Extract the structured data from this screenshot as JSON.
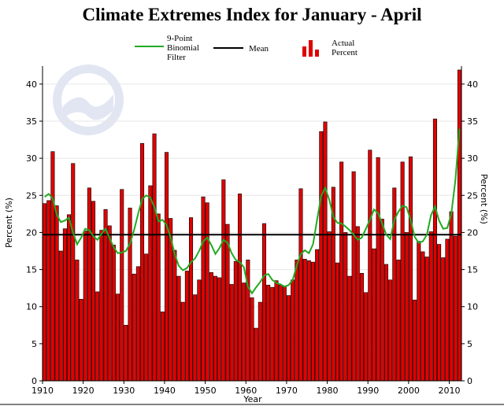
{
  "chart_data": {
    "type": "bar",
    "title": "Climate Extremes Index for January - April",
    "xlabel": "Year",
    "ylabel_left": "Percent (%)",
    "ylabel_right": "Percent (%)",
    "xlim": [
      1910,
      2013
    ],
    "ylim": [
      0,
      42
    ],
    "xticks": [
      1910,
      1920,
      1930,
      1940,
      1950,
      1960,
      1970,
      1980,
      1990,
      2000,
      2010
    ],
    "yticks": [
      0,
      5,
      10,
      15,
      20,
      25,
      30,
      35,
      40
    ],
    "grid": true,
    "legend": {
      "placement": "top",
      "filter_label_lines": [
        "9-Point",
        "Binomial",
        "Filter"
      ],
      "mean_label": "Mean",
      "actual_label_lines": [
        "Actual",
        "Percent"
      ]
    },
    "colors": {
      "bars": "#e00000",
      "bar_edge": "#000000",
      "filter": "#22aa22",
      "mean": "#000000"
    },
    "mean_value": 19.7,
    "x": [
      1910,
      1911,
      1912,
      1913,
      1914,
      1915,
      1916,
      1917,
      1918,
      1919,
      1920,
      1921,
      1922,
      1923,
      1924,
      1925,
      1926,
      1927,
      1928,
      1929,
      1930,
      1931,
      1932,
      1933,
      1934,
      1935,
      1936,
      1937,
      1938,
      1939,
      1940,
      1941,
      1942,
      1943,
      1944,
      1945,
      1946,
      1947,
      1948,
      1949,
      1950,
      1951,
      1952,
      1953,
      1954,
      1955,
      1956,
      1957,
      1958,
      1959,
      1960,
      1961,
      1962,
      1963,
      1964,
      1965,
      1966,
      1967,
      1968,
      1969,
      1970,
      1971,
      1972,
      1973,
      1974,
      1975,
      1976,
      1977,
      1978,
      1979,
      1980,
      1981,
      1982,
      1983,
      1984,
      1985,
      1986,
      1987,
      1988,
      1989,
      1990,
      1991,
      1992,
      1993,
      1994,
      1995,
      1996,
      1997,
      1998,
      1999,
      2000,
      2001,
      2002,
      2003,
      2004,
      2005,
      2006,
      2007,
      2008,
      2009,
      2010,
      2011,
      2012
    ],
    "series": [
      {
        "values": [
          23.9,
          24.3,
          30.9,
          23.6,
          17.5,
          20.5,
          22.4,
          29.3,
          16.3,
          11.0,
          20.2,
          26.0,
          24.2,
          12.0,
          20.3,
          23.1,
          20.9,
          18.3,
          11.7,
          25.8,
          7.5,
          23.3,
          14.4,
          15.4,
          32.0,
          17.1,
          26.3,
          33.3,
          22.5,
          9.3,
          30.8,
          21.9,
          17.6,
          14.1,
          10.6,
          14.8,
          22.0,
          11.6,
          13.6,
          24.8,
          24.0,
          14.6,
          14.1,
          13.9,
          27.1,
          21.1,
          13.0,
          16.1,
          25.2,
          13.2,
          16.3,
          11.2,
          7.1,
          10.6,
          21.2,
          12.9,
          12.6,
          13.5,
          12.9,
          12.8,
          11.5,
          13.6,
          16.3,
          25.9,
          16.4,
          16.2,
          16.0,
          17.7,
          33.6,
          34.9,
          20.1,
          26.1,
          15.9,
          29.5,
          20.0,
          14.1,
          28.2,
          20.8,
          14.5,
          11.9,
          31.1,
          17.8,
          30.1,
          21.8,
          15.7,
          13.6,
          26.0,
          16.3,
          29.5,
          20.0,
          30.2,
          10.9,
          18.8,
          17.4,
          16.7,
          20.1,
          35.3,
          18.4,
          16.6,
          19.1,
          22.8,
          19.5,
          41.9
        ]
      },
      {
        "values": [
          24.8,
          25.2,
          24.6,
          22.4,
          21.4,
          21.6,
          22.0,
          20.0,
          18.4,
          19.3,
          20.5,
          20.3,
          19.5,
          19.0,
          19.8,
          20.5,
          19.2,
          18.0,
          17.2,
          17.3,
          17.5,
          18.5,
          20.3,
          22.5,
          24.5,
          25.0,
          24.7,
          23.4,
          21.5,
          21.7,
          21.0,
          19.3,
          17.1,
          15.5,
          14.9,
          15.2,
          16.0,
          16.5,
          17.5,
          18.8,
          19.3,
          18.3,
          17.1,
          17.9,
          19.0,
          18.6,
          17.2,
          16.3,
          16.0,
          15.3,
          12.7,
          11.8,
          12.6,
          13.3,
          14.2,
          14.4,
          13.6,
          13.2,
          13.0,
          12.7,
          12.9,
          13.6,
          15.5,
          17.1,
          17.6,
          17.2,
          18.4,
          21.7,
          24.9,
          26.0,
          24.4,
          22.1,
          21.3,
          21.2,
          20.8,
          20.3,
          19.7,
          19.0,
          19.3,
          20.5,
          21.7,
          23.1,
          22.6,
          21.2,
          19.7,
          19.1,
          21.7,
          22.8,
          23.6,
          23.4,
          21.7,
          19.4,
          18.6,
          18.8,
          19.7,
          22.3,
          23.5,
          21.6,
          20.5,
          20.6,
          22.5,
          27.0,
          34.0
        ]
      }
    ]
  }
}
